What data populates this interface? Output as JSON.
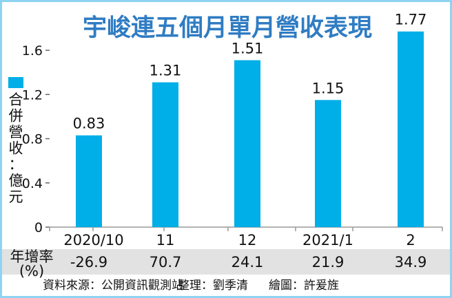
{
  "chart_data": {
    "type": "bar",
    "title": "宇峻連五個月單月營收表現",
    "categories": [
      "2020/10",
      "11",
      "12",
      "2021/1",
      "2"
    ],
    "series": [
      {
        "name": "合併營收",
        "values": [
          0.83,
          1.31,
          1.51,
          1.15,
          1.77
        ]
      }
    ],
    "value_labels": [
      "0.83",
      "1.31",
      "1.51",
      "1.15",
      "1.77"
    ],
    "ylabel": "合併營收：億元",
    "ylabel_chars": [
      "合",
      "併",
      "營",
      "收",
      "：",
      "億",
      "元"
    ],
    "ylim": [
      0,
      1.8
    ],
    "yticks": [
      "0",
      "0.4",
      "0.8",
      "1.2",
      "1.6"
    ],
    "ytick_values": [
      0,
      0.4,
      0.8,
      1.2,
      1.6
    ],
    "grid": false,
    "legend": "left",
    "bar_color": "#00aee8",
    "title_color": "#2f7cc3",
    "growth_row": {
      "label_line1": "年增率",
      "label_line2": "(%)",
      "values": [
        "-26.9",
        "70.7",
        "24.1",
        "21.9",
        "34.9"
      ],
      "band_color": "#e2e2e2"
    }
  },
  "footer": {
    "source": "資料來源：公開資訊觀測站",
    "editor": "整理：劉季清",
    "artist": "繪圖：許爰旌"
  }
}
